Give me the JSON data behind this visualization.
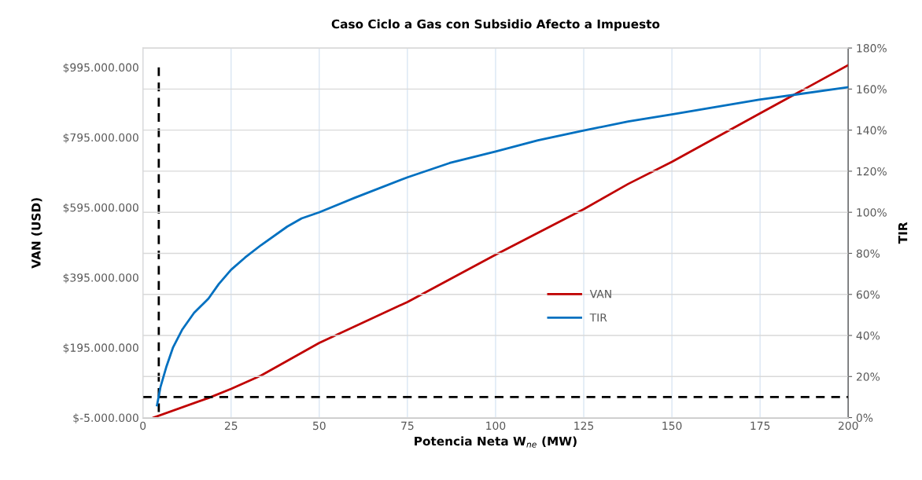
{
  "chart_data": {
    "type": "line",
    "title": "Caso Ciclo a Gas con Subsidio Afecto a Impuesto",
    "xlabel": "Potencia Neta W$_{ne}$ (MW)",
    "ylabel": "VAN (USD)",
    "y2label": "TIR",
    "xlim": [
      0,
      200
    ],
    "xticks": [
      0,
      25,
      50,
      75,
      100,
      125,
      150,
      175,
      200
    ],
    "ylim": [
      -5000000,
      1050000000
    ],
    "yticks": [
      {
        "value": -5000000,
        "label": "$-5.000.000"
      },
      {
        "value": 195000000,
        "label": "$195.000.000"
      },
      {
        "value": 395000000,
        "label": "$395.000.000"
      },
      {
        "value": 595000000,
        "label": "$595.000.000"
      },
      {
        "value": 795000000,
        "label": "$795.000.000"
      },
      {
        "value": 995000000,
        "label": "$995.000.000"
      }
    ],
    "y2lim": [
      0,
      180
    ],
    "y2ticks": [
      {
        "value": 0,
        "label": "0%"
      },
      {
        "value": 20,
        "label": "20%"
      },
      {
        "value": 40,
        "label": "40%"
      },
      {
        "value": 60,
        "label": "60%"
      },
      {
        "value": 80,
        "label": "80%"
      },
      {
        "value": 100,
        "label": "100%"
      },
      {
        "value": 120,
        "label": "120%"
      },
      {
        "value": 140,
        "label": "140%"
      },
      {
        "value": 160,
        "label": "160%"
      },
      {
        "value": 180,
        "label": "180%"
      }
    ],
    "grid": true,
    "legend": "center",
    "line_style": "solid",
    "series": [
      {
        "name": "VAN",
        "color": "#c00000",
        "x": [
          3,
          18.6,
          25,
          33.5,
          50,
          75,
          100,
          125,
          137.6,
          150,
          174.7,
          200
        ],
        "values": [
          -5000000,
          51000000,
          77000000,
          115000000,
          208000000,
          325000000,
          460000000,
          590000000,
          662000000,
          725000000,
          862000000,
          1001000000
        ]
      },
      {
        "name": "TIR",
        "color": "#0070c0",
        "axis": "y2",
        "x": [
          4,
          5,
          6.7,
          8.5,
          11.2,
          14.5,
          18.6,
          21.5,
          25,
          29,
          33.5,
          40.9,
          45,
          50,
          60,
          75,
          87,
          100,
          112,
          125,
          137.6,
          150,
          174.7,
          200
        ],
        "values": [
          6,
          15,
          25,
          34,
          43,
          51,
          58,
          65,
          72,
          78,
          84,
          93,
          97,
          100,
          107,
          117,
          124,
          129.6,
          135,
          139.8,
          144.2,
          147.7,
          154.8,
          160.9
        ]
      },
      {
        "color": "#000000",
        "line_style": "dashed",
        "x": [
          4.5,
          4.5
        ],
        "values": [
          995000000,
          -5000000
        ]
      }
    ],
    "ref_lines": [
      {
        "axis": "y2",
        "value": 10,
        "color": "#000000",
        "line_style": "dashed"
      }
    ]
  }
}
